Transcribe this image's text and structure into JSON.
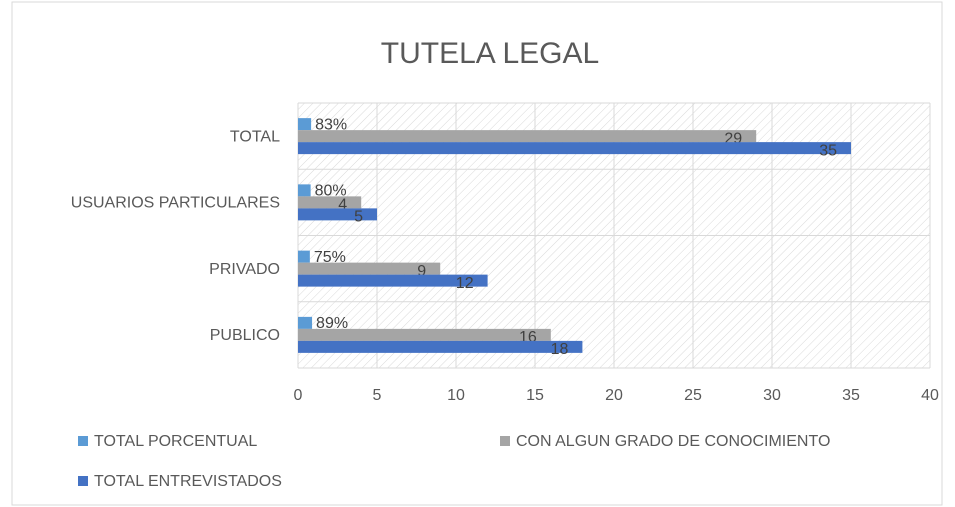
{
  "chart_data": {
    "type": "hbar",
    "title": "TUTELA LEGAL",
    "categories": [
      "TOTAL",
      "USUARIOS PARTICULARES",
      "PRIVADO",
      "PUBLICO"
    ],
    "series": [
      {
        "name": "TOTAL PORCENTUAL",
        "color": "#5b9bd5",
        "values": [
          0.83,
          0.8,
          0.75,
          0.89
        ],
        "value_labels": [
          "83%",
          "80%",
          "75%",
          "89%"
        ]
      },
      {
        "name": "CON ALGUN GRADO DE CONOCIMIENTO",
        "color": "#a5a5a5",
        "values": [
          29,
          4,
          9,
          16
        ]
      },
      {
        "name": "TOTAL ENTREVISTADOS",
        "color": "#4472c4",
        "values": [
          35,
          5,
          12,
          18
        ]
      }
    ],
    "xlim": [
      0,
      40
    ],
    "xticks": [
      0,
      5,
      10,
      15,
      20,
      25,
      30,
      35,
      40
    ],
    "grid": true
  }
}
